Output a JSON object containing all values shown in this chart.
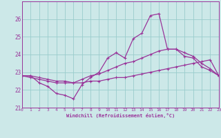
{
  "xlabel": "Windchill (Refroidissement éolien,°C)",
  "bg_color": "#cce8e8",
  "line_color": "#993399",
  "grid_color": "#99cccc",
  "hours": [
    0,
    1,
    2,
    3,
    4,
    5,
    6,
    7,
    8,
    9,
    10,
    11,
    12,
    13,
    14,
    15,
    16,
    17,
    18,
    19,
    20,
    21,
    22,
    23
  ],
  "line1": [
    22.8,
    22.8,
    22.4,
    22.2,
    21.8,
    21.7,
    21.5,
    22.3,
    22.7,
    23.0,
    23.8,
    24.1,
    23.8,
    24.9,
    25.2,
    26.2,
    26.3,
    24.3,
    24.3,
    23.9,
    23.8,
    23.3,
    23.1,
    22.8
  ],
  "line2": [
    22.8,
    22.8,
    22.7,
    22.6,
    22.5,
    22.5,
    22.4,
    22.6,
    22.8,
    22.9,
    23.1,
    23.3,
    23.5,
    23.6,
    23.8,
    24.0,
    24.2,
    24.3,
    24.3,
    24.1,
    23.9,
    23.5,
    23.2,
    22.8
  ],
  "line3": [
    22.8,
    22.7,
    22.6,
    22.5,
    22.4,
    22.4,
    22.4,
    22.4,
    22.5,
    22.5,
    22.6,
    22.7,
    22.7,
    22.8,
    22.9,
    23.0,
    23.1,
    23.2,
    23.3,
    23.4,
    23.5,
    23.6,
    23.7,
    22.8
  ],
  "ylim": [
    21.0,
    27.0
  ],
  "yticks": [
    21,
    22,
    23,
    24,
    25,
    26
  ],
  "xlim": [
    0,
    23
  ],
  "xticks": [
    0,
    1,
    2,
    3,
    4,
    5,
    6,
    7,
    8,
    9,
    10,
    11,
    12,
    13,
    14,
    15,
    16,
    17,
    18,
    19,
    20,
    21,
    22,
    23
  ]
}
